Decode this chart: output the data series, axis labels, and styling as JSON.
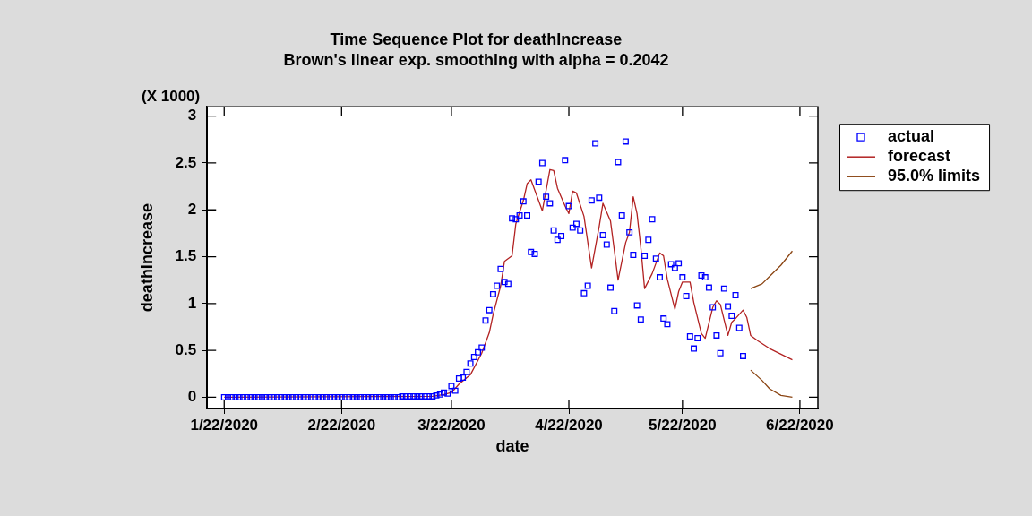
{
  "chart_data": {
    "type": "scatter",
    "title": "Time Sequence Plot for deathIncrease",
    "subtitle": "Brown's linear exp. smoothing with alpha = 0.2042",
    "xlabel": "date",
    "ylabel": "deathIncrease",
    "annotations": [
      "(X 1000)"
    ],
    "xlim": [
      "2020-01-17T12:00",
      "2020-06-26T18:00"
    ],
    "xticks": [
      {
        "value": "2020-01-22",
        "label": "1/22/2020"
      },
      {
        "value": "2020-02-22",
        "label": "2/22/2020"
      },
      {
        "value": "2020-03-22",
        "label": "3/22/2020"
      },
      {
        "value": "2020-04-22",
        "label": "4/22/2020"
      },
      {
        "value": "2020-05-22",
        "label": "5/22/2020"
      },
      {
        "value": "2020-06-22",
        "label": "6/22/2020"
      }
    ],
    "ylim": [
      -0.12,
      3.1
    ],
    "yticks": [
      0,
      0.5,
      1,
      1.5,
      2,
      2.5,
      3
    ],
    "grid": false,
    "legend": "top right",
    "series": [
      {
        "name": "actual",
        "marker": "square",
        "color": "#0000ff",
        "x": [
          "2020-01-22",
          "2020-01-23",
          "2020-01-24",
          "2020-01-25",
          "2020-01-26",
          "2020-01-27",
          "2020-01-28",
          "2020-01-29",
          "2020-01-30",
          "2020-01-31",
          "2020-02-01",
          "2020-02-02",
          "2020-02-03",
          "2020-02-04",
          "2020-02-05",
          "2020-02-06",
          "2020-02-07",
          "2020-02-08",
          "2020-02-09",
          "2020-02-10",
          "2020-02-11",
          "2020-02-12",
          "2020-02-13",
          "2020-02-14",
          "2020-02-15",
          "2020-02-16",
          "2020-02-17",
          "2020-02-18",
          "2020-02-19",
          "2020-02-20",
          "2020-02-21",
          "2020-02-22",
          "2020-02-23",
          "2020-02-24",
          "2020-02-25",
          "2020-02-26",
          "2020-02-27",
          "2020-02-28",
          "2020-02-29",
          "2020-03-01",
          "2020-03-02",
          "2020-03-03",
          "2020-03-04",
          "2020-03-05",
          "2020-03-06",
          "2020-03-07",
          "2020-03-08",
          "2020-03-09",
          "2020-03-10",
          "2020-03-11",
          "2020-03-12",
          "2020-03-13",
          "2020-03-14",
          "2020-03-15",
          "2020-03-16",
          "2020-03-17",
          "2020-03-18",
          "2020-03-19",
          "2020-03-20",
          "2020-03-21",
          "2020-03-22",
          "2020-03-23",
          "2020-03-24",
          "2020-03-25",
          "2020-03-26",
          "2020-03-27",
          "2020-03-28",
          "2020-03-29",
          "2020-03-30",
          "2020-03-31",
          "2020-04-01",
          "2020-04-02",
          "2020-04-03",
          "2020-04-04",
          "2020-04-05",
          "2020-04-06",
          "2020-04-07",
          "2020-04-08",
          "2020-04-09",
          "2020-04-10",
          "2020-04-11",
          "2020-04-12",
          "2020-04-13",
          "2020-04-14",
          "2020-04-15",
          "2020-04-16",
          "2020-04-17",
          "2020-04-18",
          "2020-04-19",
          "2020-04-20",
          "2020-04-21",
          "2020-04-22",
          "2020-04-23",
          "2020-04-24",
          "2020-04-25",
          "2020-04-26",
          "2020-04-27",
          "2020-04-28",
          "2020-04-29",
          "2020-04-30",
          "2020-05-01",
          "2020-05-02",
          "2020-05-03",
          "2020-05-04",
          "2020-05-05",
          "2020-05-06",
          "2020-05-07",
          "2020-05-08",
          "2020-05-09",
          "2020-05-10",
          "2020-05-11",
          "2020-05-12",
          "2020-05-13",
          "2020-05-14",
          "2020-05-15",
          "2020-05-16",
          "2020-05-17",
          "2020-05-18",
          "2020-05-19",
          "2020-05-20",
          "2020-05-21",
          "2020-05-22",
          "2020-05-23",
          "2020-05-24",
          "2020-05-25",
          "2020-05-26",
          "2020-05-27",
          "2020-05-28",
          "2020-05-29",
          "2020-05-30",
          "2020-05-31",
          "2020-06-01",
          "2020-06-02",
          "2020-06-03",
          "2020-06-04",
          "2020-06-05",
          "2020-06-06",
          "2020-06-07"
        ],
        "values": [
          0,
          0,
          0,
          0,
          0,
          0,
          0,
          0,
          0,
          0,
          0,
          0,
          0,
          0,
          0,
          0,
          0,
          0,
          0,
          0,
          0,
          0,
          0,
          0,
          0,
          0,
          0,
          0,
          0,
          0,
          0,
          0,
          0,
          0,
          0,
          0,
          0,
          0,
          0,
          0,
          0,
          0,
          0,
          0,
          0,
          0,
          0,
          0.01,
          0.01,
          0.01,
          0.01,
          0.01,
          0.01,
          0.01,
          0.01,
          0.01,
          0.02,
          0.03,
          0.05,
          0.04,
          0.12,
          0.07,
          0.2,
          0.21,
          0.27,
          0.36,
          0.43,
          0.48,
          0.53,
          0.82,
          0.93,
          1.1,
          1.19,
          1.37,
          1.23,
          1.21,
          1.91,
          1.9,
          1.94,
          2.09,
          1.94,
          1.55,
          1.53,
          2.3,
          2.5,
          2.14,
          2.07,
          1.78,
          1.68,
          1.72,
          2.53,
          2.04,
          1.81,
          1.85,
          1.78,
          1.11,
          1.19,
          2.1,
          2.71,
          2.13,
          1.73,
          1.63,
          1.17,
          0.92,
          2.51,
          1.94,
          2.73,
          1.76,
          1.52,
          0.98,
          0.83,
          1.51,
          1.68,
          1.9,
          1.48,
          1.28,
          0.84,
          0.78,
          1.42,
          1.38,
          1.43,
          1.28,
          1.08,
          0.65,
          0.52,
          0.63,
          1.3,
          1.28,
          1.17,
          0.96,
          0.66,
          0.47,
          1.16,
          0.97,
          0.87,
          1.09,
          0.74,
          0.44
        ]
      },
      {
        "name": "forecast",
        "type": "line",
        "marker": "none",
        "line_style": "solid",
        "color": "#b22222",
        "x": [
          "2020-01-22",
          "2020-03-17",
          "2020-03-20",
          "2020-03-22",
          "2020-03-24",
          "2020-03-27",
          "2020-03-30",
          "2020-04-01",
          "2020-04-02",
          "2020-04-04",
          "2020-04-05",
          "2020-04-07",
          "2020-04-08",
          "2020-04-10",
          "2020-04-11",
          "2020-04-12",
          "2020-04-13",
          "2020-04-15",
          "2020-04-17",
          "2020-04-18",
          "2020-04-19",
          "2020-04-21",
          "2020-04-22",
          "2020-04-23",
          "2020-04-24",
          "2020-04-26",
          "2020-04-28",
          "2020-04-30",
          "2020-05-01",
          "2020-05-03",
          "2020-05-04",
          "2020-05-05",
          "2020-05-07",
          "2020-05-08",
          "2020-05-09",
          "2020-05-10",
          "2020-05-11",
          "2020-05-12",
          "2020-05-14",
          "2020-05-16",
          "2020-05-17",
          "2020-05-18",
          "2020-05-20",
          "2020-05-21",
          "2020-05-22",
          "2020-05-24",
          "2020-05-25",
          "2020-05-27",
          "2020-05-28",
          "2020-05-30",
          "2020-05-31",
          "2020-06-01",
          "2020-06-03",
          "2020-06-04",
          "2020-06-05",
          "2020-06-07",
          "2020-06-08",
          "2020-06-09",
          "2020-06-11",
          "2020-06-14",
          "2020-06-17",
          "2020-06-20"
        ],
        "values": [
          0,
          0.01,
          0.03,
          0.05,
          0.14,
          0.24,
          0.47,
          0.69,
          0.88,
          1.19,
          1.45,
          1.51,
          1.85,
          2.1,
          2.28,
          2.32,
          2.21,
          1.99,
          2.43,
          2.42,
          2.23,
          2.04,
          1.96,
          2.2,
          2.18,
          1.93,
          1.38,
          1.82,
          2.07,
          1.88,
          1.57,
          1.25,
          1.65,
          1.76,
          2.14,
          1.96,
          1.6,
          1.16,
          1.32,
          1.54,
          1.51,
          1.26,
          0.94,
          1.13,
          1.23,
          1.23,
          1.01,
          0.68,
          0.63,
          0.96,
          1.03,
          0.99,
          0.66,
          0.8,
          0.84,
          0.93,
          0.85,
          0.66,
          0.6,
          0.52,
          0.46,
          0.4
        ]
      },
      {
        "name": "95.0% limits",
        "type": "line",
        "marker": "none",
        "line_style": "solid",
        "color": "#8b4513",
        "x": [
          "2020-06-09",
          "2020-06-12",
          "2020-06-14",
          "2020-06-17",
          "2020-06-20"
        ],
        "values": [
          1.16,
          1.21,
          1.29,
          1.41,
          1.56
        ]
      },
      {
        "type": "line",
        "marker": "none",
        "line_style": "solid",
        "color": "#8b4513",
        "x": [
          "2020-06-09",
          "2020-06-12",
          "2020-06-14",
          "2020-06-17",
          "2020-06-20"
        ],
        "values": [
          0.29,
          0.18,
          0.09,
          0.02,
          0
        ]
      }
    ]
  }
}
